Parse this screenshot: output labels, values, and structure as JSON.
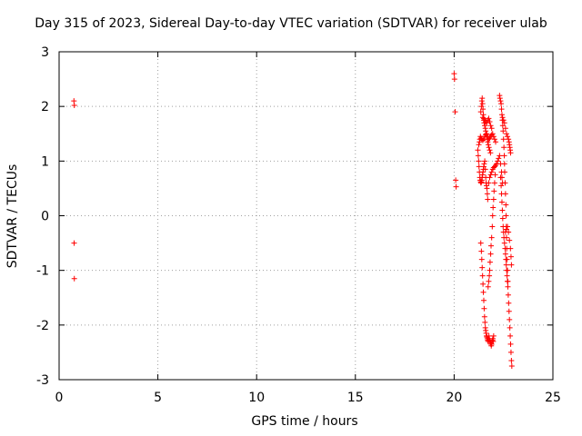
{
  "chart_data": {
    "type": "scatter",
    "title": "Day 315 of 2023, Sidereal Day-to-day VTEC variation (SDTVAR) for receiver ulab",
    "xlabel": "GPS time / hours",
    "ylabel": "SDTVAR / TECUs",
    "xlim": [
      0,
      25
    ],
    "ylim": [
      -3,
      3
    ],
    "xticks": [
      0,
      5,
      10,
      15,
      20,
      25
    ],
    "yticks": [
      -3,
      -2,
      -1,
      0,
      1,
      2,
      3
    ],
    "grid": true,
    "marker": "+",
    "color": "#ff0000",
    "series": [
      {
        "name": "SDTVAR",
        "points": [
          [
            0.75,
            2.1
          ],
          [
            0.77,
            2.02
          ],
          [
            0.76,
            -0.5
          ],
          [
            0.77,
            -1.15
          ],
          [
            20.0,
            2.6
          ],
          [
            20.02,
            2.5
          ],
          [
            20.05,
            1.9
          ],
          [
            20.08,
            0.65
          ],
          [
            20.1,
            0.53
          ],
          [
            21.35,
            -0.5
          ],
          [
            21.38,
            -0.65
          ],
          [
            21.4,
            -0.8
          ],
          [
            21.42,
            -0.95
          ],
          [
            21.44,
            -1.1
          ],
          [
            21.46,
            -1.25
          ],
          [
            21.48,
            -1.4
          ],
          [
            21.5,
            -1.55
          ],
          [
            21.52,
            -1.7
          ],
          [
            21.54,
            -1.85
          ],
          [
            21.56,
            -1.95
          ],
          [
            21.58,
            -2.05
          ],
          [
            21.6,
            -2.1
          ],
          [
            21.62,
            -2.15
          ],
          [
            21.64,
            -2.2
          ],
          [
            21.66,
            -2.22
          ],
          [
            21.68,
            -2.25
          ],
          [
            21.7,
            -2.28
          ],
          [
            21.72,
            -2.3
          ],
          [
            21.74,
            -2.25
          ],
          [
            21.76,
            -2.2
          ],
          [
            21.78,
            -2.25
          ],
          [
            21.8,
            -2.28
          ],
          [
            21.82,
            -2.3
          ],
          [
            21.84,
            -2.32
          ],
          [
            21.86,
            -2.35
          ],
          [
            21.88,
            -2.38
          ],
          [
            21.9,
            -2.35
          ],
          [
            21.92,
            -2.3
          ],
          [
            21.94,
            -2.28
          ],
          [
            21.96,
            -2.25
          ],
          [
            21.98,
            -2.3
          ],
          [
            22.0,
            -2.2
          ],
          [
            21.72,
            -1.3
          ],
          [
            21.75,
            -1.2
          ],
          [
            21.78,
            -1.1
          ],
          [
            21.8,
            -1.0
          ],
          [
            21.82,
            -0.85
          ],
          [
            21.85,
            -0.7
          ],
          [
            21.87,
            -0.55
          ],
          [
            21.9,
            -0.4
          ],
          [
            21.93,
            -0.2
          ],
          [
            21.95,
            0.0
          ],
          [
            21.97,
            0.15
          ],
          [
            22.0,
            0.3
          ],
          [
            22.02,
            0.45
          ],
          [
            22.05,
            0.6
          ],
          [
            22.08,
            0.75
          ],
          [
            21.2,
            1.2
          ],
          [
            21.22,
            1.1
          ],
          [
            21.24,
            1.0
          ],
          [
            21.26,
            0.9
          ],
          [
            21.28,
            0.8
          ],
          [
            21.3,
            0.7
          ],
          [
            21.32,
            0.65
          ],
          [
            21.34,
            0.62
          ],
          [
            21.36,
            0.6
          ],
          [
            21.38,
            0.62
          ],
          [
            21.4,
            0.65
          ],
          [
            21.42,
            0.7
          ],
          [
            21.44,
            0.75
          ],
          [
            21.46,
            0.8
          ],
          [
            21.48,
            0.85
          ],
          [
            21.5,
            0.9
          ],
          [
            21.52,
            0.95
          ],
          [
            21.55,
            1.0
          ],
          [
            21.58,
            0.85
          ],
          [
            21.6,
            0.7
          ],
          [
            21.62,
            0.6
          ],
          [
            21.64,
            0.55
          ],
          [
            21.66,
            0.5
          ],
          [
            21.68,
            0.4
          ],
          [
            21.7,
            0.3
          ],
          [
            21.35,
            1.9
          ],
          [
            21.38,
            2.0
          ],
          [
            21.4,
            2.1
          ],
          [
            21.42,
            2.15
          ],
          [
            21.44,
            2.05
          ],
          [
            21.46,
            1.95
          ],
          [
            21.48,
            1.85
          ],
          [
            21.5,
            1.75
          ],
          [
            21.52,
            1.7
          ],
          [
            21.55,
            1.65
          ],
          [
            21.58,
            1.6
          ],
          [
            21.6,
            1.55
          ],
          [
            21.62,
            1.5
          ],
          [
            21.65,
            1.45
          ],
          [
            21.68,
            1.4
          ],
          [
            21.7,
            1.35
          ],
          [
            21.73,
            1.3
          ],
          [
            21.76,
            1.25
          ],
          [
            21.8,
            1.2
          ],
          [
            21.84,
            1.15
          ],
          [
            21.25,
            1.3
          ],
          [
            21.28,
            1.35
          ],
          [
            21.3,
            1.4
          ],
          [
            21.33,
            1.45
          ],
          [
            21.36,
            1.42
          ],
          [
            21.4,
            1.4
          ],
          [
            21.45,
            1.38
          ],
          [
            21.5,
            1.4
          ],
          [
            21.55,
            1.45
          ],
          [
            21.6,
            1.48
          ],
          [
            21.65,
            1.5
          ],
          [
            21.7,
            1.45
          ],
          [
            21.75,
            1.4
          ],
          [
            21.8,
            1.42
          ],
          [
            21.85,
            1.45
          ],
          [
            21.9,
            1.48
          ],
          [
            21.95,
            1.5
          ],
          [
            22.0,
            1.45
          ],
          [
            22.05,
            1.4
          ],
          [
            22.1,
            1.35
          ],
          [
            21.45,
            1.8
          ],
          [
            21.5,
            1.78
          ],
          [
            21.55,
            1.75
          ],
          [
            21.6,
            1.72
          ],
          [
            21.65,
            1.7
          ],
          [
            21.7,
            1.75
          ],
          [
            21.75,
            1.78
          ],
          [
            21.8,
            1.72
          ],
          [
            21.85,
            1.65
          ],
          [
            21.9,
            1.6
          ],
          [
            21.75,
            0.6
          ],
          [
            21.8,
            0.7
          ],
          [
            21.85,
            0.75
          ],
          [
            21.9,
            0.8
          ],
          [
            21.95,
            0.85
          ],
          [
            22.0,
            0.88
          ],
          [
            22.05,
            0.9
          ],
          [
            22.1,
            0.92
          ],
          [
            22.15,
            0.95
          ],
          [
            22.2,
            1.0
          ],
          [
            22.25,
            1.05
          ],
          [
            22.3,
            1.1
          ],
          [
            22.35,
            0.95
          ],
          [
            22.4,
            0.8
          ],
          [
            22.42,
            0.7
          ],
          [
            22.45,
            0.6
          ],
          [
            22.3,
            2.2
          ],
          [
            22.32,
            2.15
          ],
          [
            22.35,
            2.1
          ],
          [
            22.38,
            2.05
          ],
          [
            22.4,
            1.95
          ],
          [
            22.42,
            1.85
          ],
          [
            22.44,
            1.75
          ],
          [
            22.46,
            1.65
          ],
          [
            22.48,
            1.55
          ],
          [
            22.5,
            1.4
          ],
          [
            22.52,
            1.25
          ],
          [
            22.54,
            1.1
          ],
          [
            22.55,
            0.95
          ],
          [
            22.56,
            0.8
          ],
          [
            22.58,
            0.6
          ],
          [
            22.6,
            0.4
          ],
          [
            22.62,
            0.2
          ],
          [
            22.63,
            0.0
          ],
          [
            22.64,
            -0.2
          ],
          [
            22.65,
            -0.4
          ],
          [
            22.66,
            -0.6
          ],
          [
            22.68,
            -0.8
          ],
          [
            22.7,
            -1.0
          ],
          [
            22.72,
            -1.2
          ],
          [
            22.45,
            1.8
          ],
          [
            22.5,
            1.75
          ],
          [
            22.55,
            1.7
          ],
          [
            22.6,
            1.6
          ],
          [
            22.65,
            1.5
          ],
          [
            22.7,
            1.45
          ],
          [
            22.75,
            1.4
          ],
          [
            22.78,
            1.35
          ],
          [
            22.8,
            1.3
          ],
          [
            22.82,
            1.25
          ],
          [
            22.84,
            1.2
          ],
          [
            22.86,
            1.15
          ],
          [
            22.35,
            0.7
          ],
          [
            22.38,
            0.55
          ],
          [
            22.4,
            0.4
          ],
          [
            22.42,
            0.25
          ],
          [
            22.44,
            0.1
          ],
          [
            22.46,
            -0.05
          ],
          [
            22.48,
            -0.2
          ],
          [
            22.5,
            -0.3
          ],
          [
            22.52,
            -0.4
          ],
          [
            22.55,
            -0.5
          ],
          [
            22.58,
            -0.6
          ],
          [
            22.6,
            -0.7
          ],
          [
            22.62,
            -0.8
          ],
          [
            22.64,
            -0.9
          ],
          [
            22.66,
            -1.0
          ],
          [
            22.68,
            -1.1
          ],
          [
            22.7,
            -1.2
          ],
          [
            22.72,
            -1.3
          ],
          [
            22.74,
            -1.45
          ],
          [
            22.76,
            -1.6
          ],
          [
            22.78,
            -1.75
          ],
          [
            22.8,
            -1.9
          ],
          [
            22.82,
            -2.05
          ],
          [
            22.84,
            -2.2
          ],
          [
            22.86,
            -2.35
          ],
          [
            22.88,
            -2.5
          ],
          [
            22.9,
            -2.65
          ],
          [
            22.92,
            -2.75
          ],
          [
            22.6,
            -0.3
          ],
          [
            22.65,
            -0.25
          ],
          [
            22.7,
            -0.2
          ],
          [
            22.75,
            -0.3
          ],
          [
            22.8,
            -0.45
          ],
          [
            22.85,
            -0.6
          ],
          [
            22.88,
            -0.75
          ],
          [
            22.9,
            -0.9
          ]
        ]
      }
    ]
  }
}
